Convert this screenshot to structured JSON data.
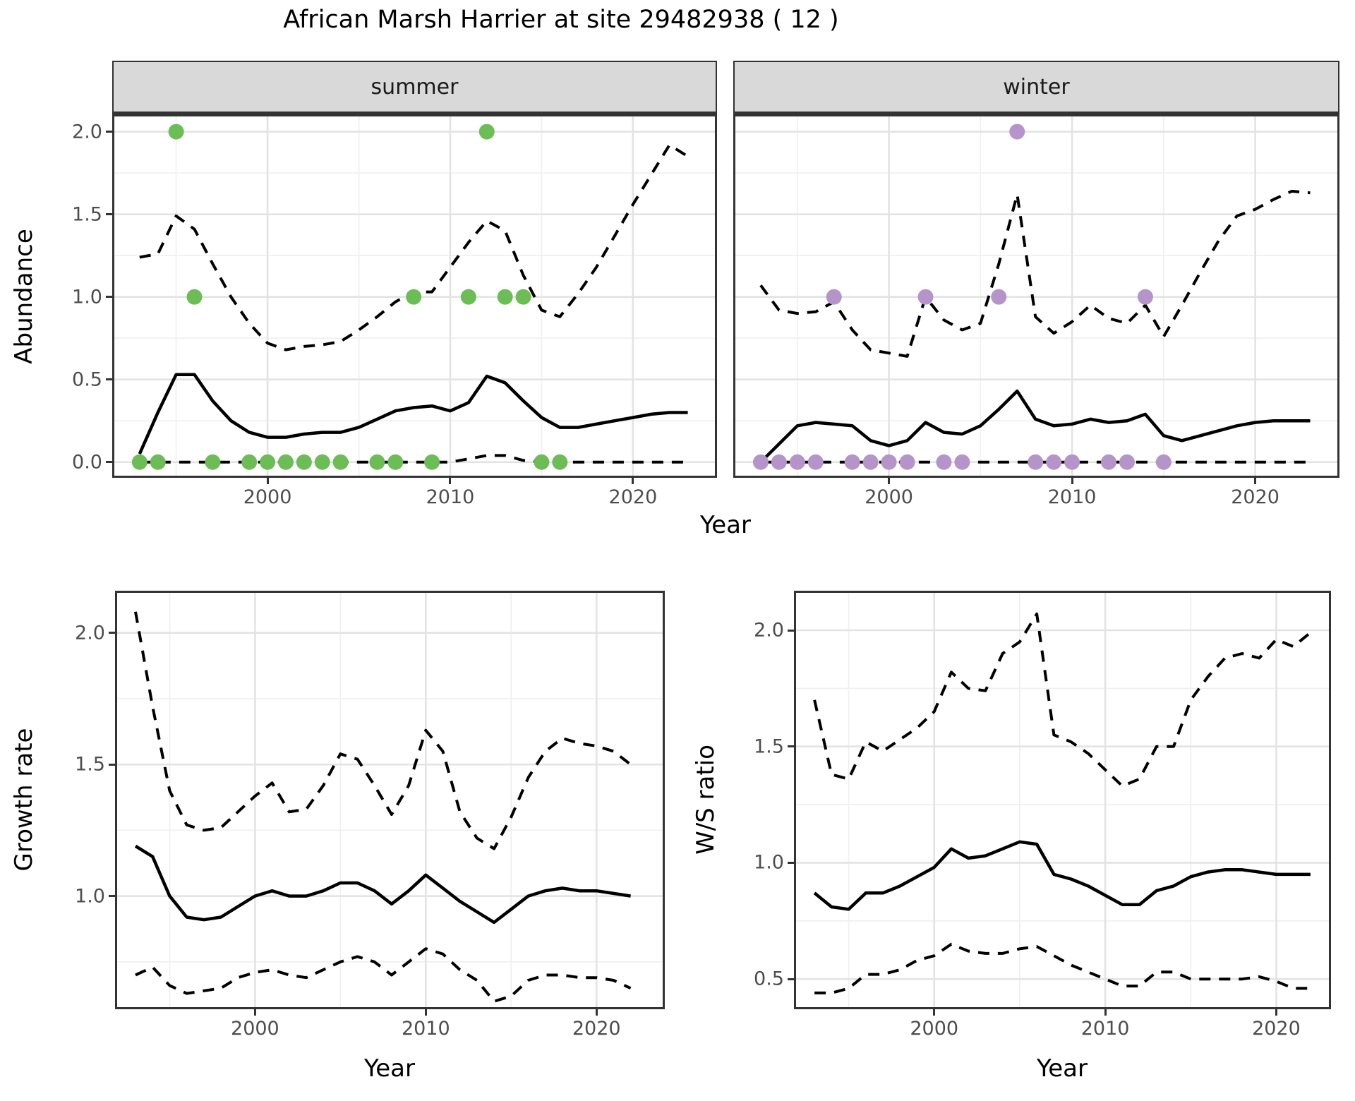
{
  "title": "African Marsh Harrier at site 29482938 ( 12 )",
  "colors": {
    "summer_points": "#6cbd55",
    "winter_points": "#b594ca",
    "line": "#000000",
    "grid_major": "#e3e3e3",
    "grid_minor": "#f0f0f0",
    "panel_border": "#333333",
    "strip_background": "#d9d9d9"
  },
  "chart_data": [
    {
      "id": "abundance_summer",
      "type": "line",
      "facet_label": "summer",
      "xlabel": "Year",
      "ylabel": "Abundance",
      "xlim": [
        1991.5,
        2024.6
      ],
      "ylim": [
        -0.095,
        2.105
      ],
      "xticks": [
        2000,
        2010,
        2020
      ],
      "xtick_labels": [
        "2000",
        "2010",
        "2020"
      ],
      "yticks": [
        0,
        0.5,
        1,
        1.5,
        2
      ],
      "ytick_labels": [
        "0.0",
        "0.5",
        "1.0",
        "1.5",
        "2.0"
      ],
      "years": [
        1993,
        1994,
        1995,
        1996,
        1997,
        1998,
        1999,
        2000,
        2001,
        2002,
        2003,
        2004,
        2005,
        2006,
        2007,
        2008,
        2009,
        2010,
        2011,
        2012,
        2013,
        2014,
        2015,
        2016,
        2017,
        2018,
        2019,
        2020,
        2021,
        2022,
        2023
      ],
      "series": [
        {
          "name": "ci_upper_95",
          "style": "dashed",
          "values": [
            1.24,
            1.26,
            1.49,
            1.41,
            1.2,
            1.0,
            0.84,
            0.72,
            0.68,
            0.7,
            0.71,
            0.73,
            0.8,
            0.88,
            0.97,
            1.03,
            1.03,
            1.18,
            1.33,
            1.46,
            1.4,
            1.13,
            0.92,
            0.88,
            1.02,
            1.18,
            1.37,
            1.56,
            1.74,
            1.92,
            1.85
          ]
        },
        {
          "name": "median",
          "style": "solid",
          "values": [
            0.05,
            0.3,
            0.53,
            0.53,
            0.37,
            0.25,
            0.18,
            0.15,
            0.15,
            0.17,
            0.18,
            0.18,
            0.21,
            0.26,
            0.31,
            0.33,
            0.34,
            0.31,
            0.36,
            0.52,
            0.48,
            0.37,
            0.27,
            0.21,
            0.21,
            0.23,
            0.25,
            0.27,
            0.29,
            0.3,
            0.3
          ]
        },
        {
          "name": "ci_lower_95",
          "style": "dashed",
          "values": [
            0,
            0,
            0,
            0,
            0,
            0,
            0,
            0,
            0,
            0,
            0,
            0,
            0,
            0,
            0,
            0,
            0,
            0,
            0.02,
            0.04,
            0.04,
            0.01,
            0,
            0,
            0,
            0,
            0,
            0,
            0,
            0,
            0
          ]
        },
        {
          "name": "observed_counts",
          "style": "points",
          "color": "#6cbd55",
          "x": [
            1993,
            1994,
            1995,
            1996,
            1997,
            1999,
            2000,
            2001,
            2002,
            2003,
            2004,
            2006,
            2007,
            2008,
            2009,
            2011,
            2012,
            2013,
            2014,
            2015,
            2016
          ],
          "y": [
            0,
            0,
            2,
            1,
            0,
            0,
            0,
            0,
            0,
            0,
            0,
            0,
            0,
            1,
            0,
            1,
            2,
            1,
            1,
            0,
            0
          ]
        }
      ]
    },
    {
      "id": "abundance_winter",
      "type": "line",
      "facet_label": "winter",
      "xlabel": "Year",
      "ylabel": "Abundance",
      "xlim": [
        1991.5,
        2024.6
      ],
      "ylim": [
        -0.095,
        2.105
      ],
      "xticks": [
        2000,
        2010,
        2020
      ],
      "xtick_labels": [
        "2000",
        "2010",
        "2020"
      ],
      "yticks": [
        0,
        0.5,
        1,
        1.5,
        2
      ],
      "ytick_labels": [
        "0.0",
        "0.5",
        "1.0",
        "1.5",
        "2.0"
      ],
      "years": [
        1993,
        1994,
        1995,
        1996,
        1997,
        1998,
        1999,
        2000,
        2001,
        2002,
        2003,
        2004,
        2005,
        2006,
        2007,
        2008,
        2009,
        2010,
        2011,
        2012,
        2013,
        2014,
        2015,
        2016,
        2017,
        2018,
        2019,
        2020,
        2021,
        2022,
        2023
      ],
      "series": [
        {
          "name": "ci_upper_95",
          "style": "dashed",
          "values": [
            1.07,
            0.92,
            0.9,
            0.91,
            0.97,
            0.8,
            0.68,
            0.66,
            0.64,
            1.0,
            0.86,
            0.8,
            0.84,
            1.2,
            1.62,
            0.88,
            0.78,
            0.85,
            0.95,
            0.87,
            0.84,
            0.95,
            0.76,
            0.95,
            1.15,
            1.34,
            1.49,
            1.53,
            1.59,
            1.64,
            1.63
          ]
        },
        {
          "name": "median",
          "style": "solid",
          "values": [
            0.0,
            0.11,
            0.22,
            0.24,
            0.23,
            0.22,
            0.13,
            0.1,
            0.13,
            0.24,
            0.18,
            0.17,
            0.22,
            0.32,
            0.43,
            0.26,
            0.22,
            0.23,
            0.26,
            0.24,
            0.25,
            0.29,
            0.16,
            0.13,
            0.16,
            0.19,
            0.22,
            0.24,
            0.25,
            0.25,
            0.25
          ]
        },
        {
          "name": "ci_lower_95",
          "style": "dashed",
          "values": [
            0,
            0,
            0,
            0,
            0,
            0,
            0,
            0,
            0,
            0,
            0,
            0,
            0,
            0,
            0,
            0,
            0,
            0,
            0,
            0,
            0,
            0,
            0,
            0,
            0,
            0,
            0,
            0,
            0,
            0,
            0
          ]
        },
        {
          "name": "observed_counts",
          "style": "points",
          "color": "#b594ca",
          "x": [
            1993,
            1994,
            1995,
            1996,
            1997,
            1998,
            1999,
            2000,
            2001,
            2002,
            2003,
            2004,
            2006,
            2007,
            2008,
            2009,
            2010,
            2012,
            2013,
            2014,
            2015
          ],
          "y": [
            0,
            0,
            0,
            0,
            1,
            0,
            0,
            0,
            0,
            1,
            0,
            0,
            1,
            2,
            0,
            0,
            0,
            0,
            0,
            1,
            0
          ]
        }
      ]
    },
    {
      "id": "growth_rate",
      "type": "line",
      "facet_label": "",
      "xlabel": "Year",
      "ylabel": "Growth rate",
      "xlim": [
        1991.8,
        2024.0
      ],
      "ylim": [
        0.57,
        2.16
      ],
      "xticks": [
        2000,
        2010,
        2020
      ],
      "xtick_labels": [
        "2000",
        "2010",
        "2020"
      ],
      "yticks": [
        1,
        1.5,
        2
      ],
      "ytick_labels": [
        "1.0",
        "1.5",
        "2.0"
      ],
      "years": [
        1993,
        1994,
        1995,
        1996,
        1997,
        1998,
        1999,
        2000,
        2001,
        2002,
        2003,
        2004,
        2005,
        2006,
        2007,
        2008,
        2009,
        2010,
        2011,
        2012,
        2013,
        2014,
        2015,
        2016,
        2017,
        2018,
        2019,
        2020,
        2021,
        2022
      ],
      "series": [
        {
          "name": "ci_upper_95",
          "style": "dashed",
          "values": [
            2.08,
            1.72,
            1.4,
            1.27,
            1.25,
            1.26,
            1.32,
            1.38,
            1.43,
            1.32,
            1.33,
            1.42,
            1.54,
            1.52,
            1.42,
            1.31,
            1.42,
            1.63,
            1.55,
            1.32,
            1.22,
            1.18,
            1.3,
            1.45,
            1.55,
            1.6,
            1.58,
            1.57,
            1.55,
            1.5
          ]
        },
        {
          "name": "median",
          "style": "solid",
          "values": [
            1.19,
            1.15,
            1.0,
            0.92,
            0.91,
            0.92,
            0.96,
            1.0,
            1.02,
            1.0,
            1.0,
            1.02,
            1.05,
            1.05,
            1.02,
            0.97,
            1.02,
            1.08,
            1.03,
            0.98,
            0.94,
            0.9,
            0.95,
            1.0,
            1.02,
            1.03,
            1.02,
            1.02,
            1.01,
            1.0
          ]
        },
        {
          "name": "ci_lower_95",
          "style": "dashed",
          "values": [
            0.7,
            0.73,
            0.66,
            0.63,
            0.64,
            0.65,
            0.69,
            0.71,
            0.72,
            0.7,
            0.69,
            0.72,
            0.75,
            0.77,
            0.75,
            0.7,
            0.75,
            0.8,
            0.78,
            0.72,
            0.68,
            0.6,
            0.62,
            0.68,
            0.7,
            0.7,
            0.69,
            0.69,
            0.68,
            0.65
          ]
        }
      ]
    },
    {
      "id": "ws_ratio",
      "type": "line",
      "facet_label": "",
      "xlabel": "Year",
      "ylabel": "W/S ratio",
      "xlim": [
        1991.8,
        2023.2
      ],
      "ylim": [
        0.37,
        2.17
      ],
      "xticks": [
        2000,
        2010,
        2020
      ],
      "xtick_labels": [
        "2000",
        "2010",
        "2020"
      ],
      "yticks": [
        0.5,
        1,
        1.5,
        2
      ],
      "ytick_labels": [
        "0.5",
        "1.0",
        "1.5",
        "2.0"
      ],
      "years": [
        1993,
        1994,
        1995,
        1996,
        1997,
        1998,
        1999,
        2000,
        2001,
        2002,
        2003,
        2004,
        2005,
        2006,
        2007,
        2008,
        2009,
        2010,
        2011,
        2012,
        2013,
        2014,
        2015,
        2016,
        2017,
        2018,
        2019,
        2020,
        2021,
        2022
      ],
      "series": [
        {
          "name": "ci_upper_95",
          "style": "dashed",
          "values": [
            1.7,
            1.38,
            1.36,
            1.52,
            1.48,
            1.53,
            1.58,
            1.65,
            1.82,
            1.75,
            1.74,
            1.9,
            1.95,
            2.07,
            1.55,
            1.52,
            1.47,
            1.4,
            1.33,
            1.36,
            1.5,
            1.5,
            1.7,
            1.8,
            1.88,
            1.9,
            1.88,
            1.96,
            1.93,
            1.99
          ]
        },
        {
          "name": "median",
          "style": "solid",
          "values": [
            0.87,
            0.81,
            0.8,
            0.87,
            0.87,
            0.9,
            0.94,
            0.98,
            1.06,
            1.02,
            1.03,
            1.06,
            1.09,
            1.08,
            0.95,
            0.93,
            0.9,
            0.86,
            0.82,
            0.82,
            0.88,
            0.9,
            0.94,
            0.96,
            0.97,
            0.97,
            0.96,
            0.95,
            0.95,
            0.95
          ]
        },
        {
          "name": "ci_lower_95",
          "style": "dashed",
          "values": [
            0.44,
            0.44,
            0.46,
            0.52,
            0.52,
            0.54,
            0.58,
            0.6,
            0.65,
            0.62,
            0.61,
            0.61,
            0.63,
            0.64,
            0.6,
            0.56,
            0.53,
            0.5,
            0.47,
            0.47,
            0.53,
            0.53,
            0.5,
            0.5,
            0.5,
            0.5,
            0.51,
            0.49,
            0.46,
            0.46
          ]
        }
      ]
    }
  ]
}
